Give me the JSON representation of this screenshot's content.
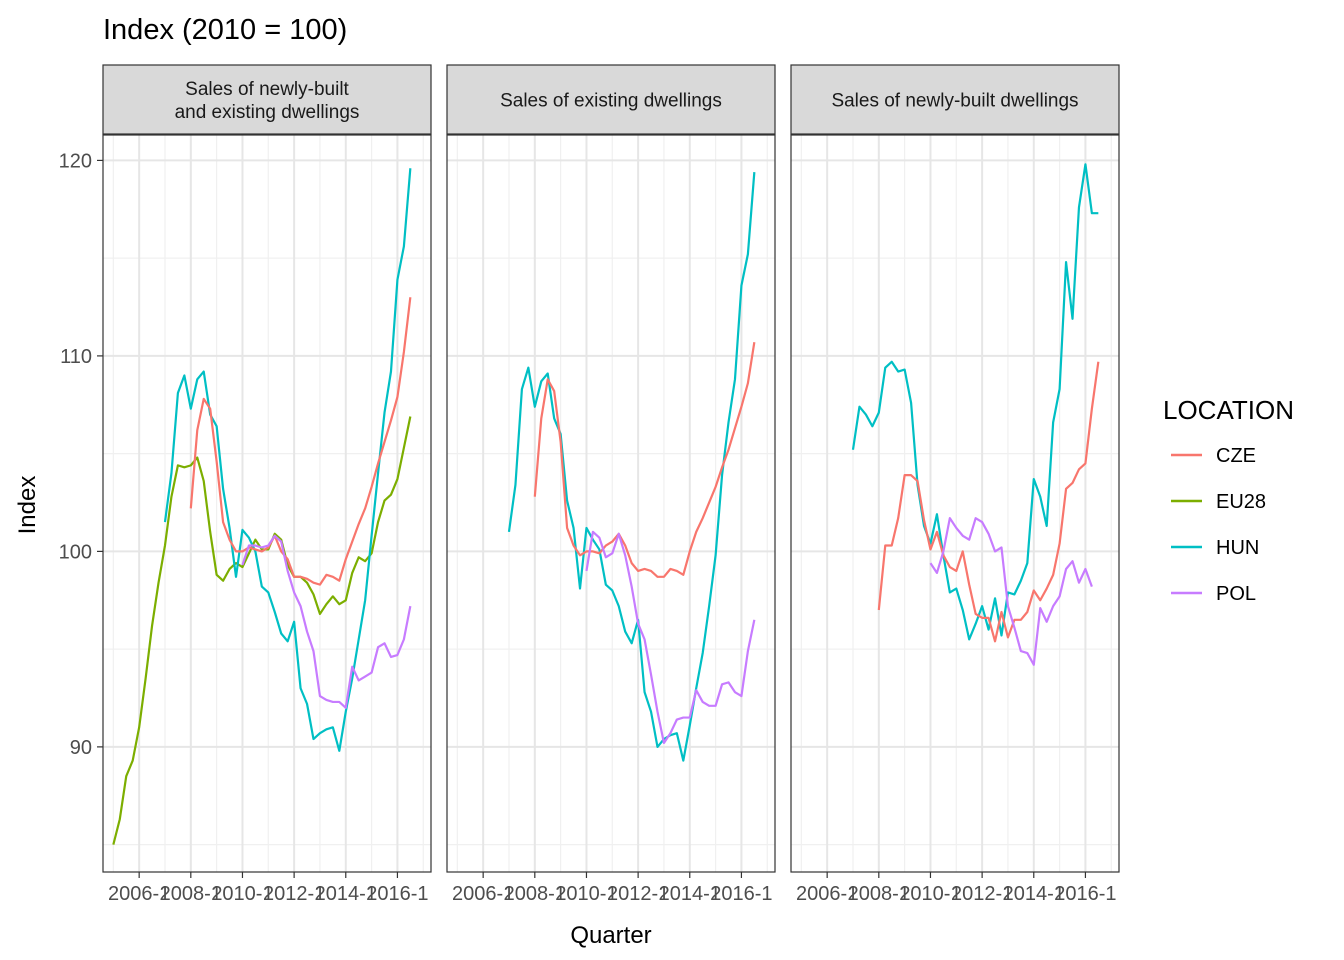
{
  "chart_data": {
    "type": "line",
    "title": "Index (2010 = 100)",
    "xlabel": "Quarter",
    "ylabel": "Index",
    "xlim": [
      2004.6,
      2017.3
    ],
    "ylim": [
      83.6,
      121.3
    ],
    "y_ticks": [
      90,
      100,
      110,
      120
    ],
    "x_ticks": [
      {
        "value": 2006,
        "label": "2006-1"
      },
      {
        "value": 2008,
        "label": "2008-1"
      },
      {
        "value": 2010,
        "label": "2010-1"
      },
      {
        "value": 2012,
        "label": "2012-1"
      },
      {
        "value": 2014,
        "label": "2014-1"
      },
      {
        "value": 2016,
        "label": "2016-1"
      }
    ],
    "grid": true,
    "legend": {
      "title": "LOCATION",
      "position": "right",
      "entries": [
        {
          "name": "CZE",
          "color": "#F8766D"
        },
        {
          "name": "EU28",
          "color": "#7CAE00"
        },
        {
          "name": "HUN",
          "color": "#00BFC4"
        },
        {
          "name": "POL",
          "color": "#C77CFF"
        }
      ]
    },
    "panels": [
      {
        "strip": [
          "Sales of newly-built",
          "and existing dwellings"
        ],
        "series": [
          {
            "name": "EU28",
            "color": "#7CAE00",
            "x": [
              2005.0,
              2005.25,
              2005.5,
              2005.75,
              2006.0,
              2006.25,
              2006.5,
              2006.75,
              2007.0,
              2007.25,
              2007.5,
              2007.75,
              2008.0,
              2008.25,
              2008.5,
              2008.75,
              2009.0,
              2009.25,
              2009.5,
              2009.75,
              2010.0,
              2010.25,
              2010.5,
              2010.75,
              2011.0,
              2011.25,
              2011.5,
              2011.75,
              2012.0,
              2012.25,
              2012.5,
              2012.75,
              2013.0,
              2013.25,
              2013.5,
              2013.75,
              2014.0,
              2014.25,
              2014.5,
              2014.75,
              2015.0,
              2015.25,
              2015.5,
              2015.75,
              2016.0,
              2016.25,
              2016.5
            ],
            "y": [
              85.0,
              86.3,
              88.5,
              89.3,
              91.0,
              93.5,
              96.2,
              98.4,
              100.3,
              102.8,
              104.4,
              104.3,
              104.4,
              104.8,
              103.6,
              101.0,
              98.8,
              98.5,
              99.1,
              99.4,
              99.2,
              99.9,
              100.6,
              100.1,
              100.1,
              100.9,
              100.6,
              99.3,
              98.7,
              98.7,
              98.4,
              97.8,
              96.8,
              97.3,
              97.7,
              97.3,
              97.5,
              98.9,
              99.7,
              99.5,
              99.9,
              101.5,
              102.6,
              102.9,
              103.7,
              105.3,
              106.9
            ]
          },
          {
            "name": "HUN",
            "color": "#00BFC4",
            "x": [
              2007.0,
              2007.25,
              2007.5,
              2007.75,
              2008.0,
              2008.25,
              2008.5,
              2008.75,
              2009.0,
              2009.25,
              2009.5,
              2009.75,
              2010.0,
              2010.25,
              2010.5,
              2010.75,
              2011.0,
              2011.25,
              2011.5,
              2011.75,
              2012.0,
              2012.25,
              2012.5,
              2012.75,
              2013.0,
              2013.25,
              2013.5,
              2013.75,
              2014.0,
              2014.25,
              2014.5,
              2014.75,
              2015.0,
              2015.25,
              2015.5,
              2015.75,
              2016.0,
              2016.25,
              2016.5
            ],
            "y": [
              101.5,
              104.0,
              108.1,
              109.0,
              107.3,
              108.8,
              109.2,
              107.0,
              106.4,
              103.2,
              101.2,
              98.7,
              101.1,
              100.7,
              100.0,
              98.2,
              97.9,
              96.9,
              95.8,
              95.4,
              96.4,
              93.0,
              92.2,
              90.4,
              90.7,
              90.9,
              91.0,
              89.8,
              91.8,
              93.5,
              95.5,
              97.5,
              100.8,
              104.0,
              107.1,
              109.2,
              113.9,
              115.6,
              119.6
            ]
          },
          {
            "name": "CZE",
            "color": "#F8766D",
            "x": [
              2008.0,
              2008.25,
              2008.5,
              2008.75,
              2009.0,
              2009.25,
              2009.5,
              2009.75,
              2010.0,
              2010.25,
              2010.5,
              2010.75,
              2011.0,
              2011.25,
              2011.5,
              2011.75,
              2012.0,
              2012.25,
              2012.5,
              2012.75,
              2013.0,
              2013.25,
              2013.5,
              2013.75,
              2014.0,
              2014.25,
              2014.5,
              2014.75,
              2015.0,
              2015.25,
              2015.5,
              2015.75,
              2016.0,
              2016.25,
              2016.5
            ],
            "y": [
              102.2,
              106.2,
              107.8,
              107.3,
              104.6,
              101.5,
              100.6,
              100.0,
              100.0,
              100.2,
              100.1,
              100.0,
              100.2,
              100.8,
              100.0,
              99.6,
              98.7,
              98.7,
              98.6,
              98.4,
              98.3,
              98.8,
              98.7,
              98.5,
              99.6,
              100.5,
              101.4,
              102.2,
              103.3,
              104.5,
              105.6,
              106.7,
              107.9,
              110.2,
              113.0
            ]
          },
          {
            "name": "POL",
            "color": "#C77CFF",
            "x": [
              2010.0,
              2010.25,
              2010.5,
              2010.75,
              2011.0,
              2011.25,
              2011.5,
              2011.75,
              2012.0,
              2012.25,
              2012.5,
              2012.75,
              2013.0,
              2013.25,
              2013.5,
              2013.75,
              2014.0,
              2014.25,
              2014.5,
              2014.75,
              2015.0,
              2015.25,
              2015.5,
              2015.75,
              2016.0,
              2016.25,
              2016.5
            ],
            "y": [
              99.3,
              100.3,
              100.3,
              100.2,
              100.3,
              100.8,
              100.5,
              99.0,
              97.9,
              97.2,
              95.9,
              94.9,
              92.6,
              92.4,
              92.3,
              92.3,
              92.0,
              94.1,
              93.4,
              93.6,
              93.8,
              95.1,
              95.3,
              94.6,
              94.7,
              95.5,
              97.2
            ]
          }
        ]
      },
      {
        "strip": [
          "Sales of existing dwellings"
        ],
        "series": [
          {
            "name": "HUN",
            "color": "#00BFC4",
            "x": [
              2007.0,
              2007.25,
              2007.5,
              2007.75,
              2008.0,
              2008.25,
              2008.5,
              2008.75,
              2009.0,
              2009.25,
              2009.5,
              2009.75,
              2010.0,
              2010.25,
              2010.5,
              2010.75,
              2011.0,
              2011.25,
              2011.5,
              2011.75,
              2012.0,
              2012.25,
              2012.5,
              2012.75,
              2013.0,
              2013.25,
              2013.5,
              2013.75,
              2014.0,
              2014.25,
              2014.5,
              2014.75,
              2015.0,
              2015.25,
              2015.5,
              2015.75,
              2016.0,
              2016.25,
              2016.5
            ],
            "y": [
              101.0,
              103.4,
              108.3,
              109.4,
              107.4,
              108.7,
              109.1,
              106.8,
              106.0,
              102.6,
              101.2,
              98.1,
              101.2,
              100.6,
              100.1,
              98.3,
              98.0,
              97.2,
              95.9,
              95.3,
              96.5,
              92.8,
              91.8,
              90.0,
              90.4,
              90.6,
              90.7,
              89.3,
              91.1,
              93.0,
              94.8,
              97.2,
              99.8,
              103.9,
              106.6,
              108.8,
              113.6,
              115.2,
              119.4
            ]
          },
          {
            "name": "CZE",
            "color": "#F8766D",
            "x": [
              2008.0,
              2008.25,
              2008.5,
              2008.75,
              2009.0,
              2009.25,
              2009.5,
              2009.75,
              2010.0,
              2010.25,
              2010.5,
              2010.75,
              2011.0,
              2011.25,
              2011.5,
              2011.75,
              2012.0,
              2012.25,
              2012.5,
              2012.75,
              2013.0,
              2013.25,
              2013.5,
              2013.75,
              2014.0,
              2014.25,
              2014.5,
              2014.75,
              2015.0,
              2015.25,
              2015.5,
              2015.75,
              2016.0,
              2016.25,
              2016.5
            ],
            "y": [
              102.8,
              106.8,
              108.8,
              108.2,
              105.6,
              101.2,
              100.3,
              99.8,
              100.0,
              100.0,
              99.9,
              100.3,
              100.5,
              100.9,
              100.3,
              99.4,
              99.0,
              99.1,
              99.0,
              98.7,
              98.7,
              99.1,
              99.0,
              98.8,
              100.0,
              101.0,
              101.7,
              102.5,
              103.3,
              104.3,
              105.2,
              106.3,
              107.4,
              108.6,
              110.7
            ]
          },
          {
            "name": "POL",
            "color": "#C77CFF",
            "x": [
              2010.0,
              2010.25,
              2010.5,
              2010.75,
              2011.0,
              2011.25,
              2011.5,
              2011.75,
              2012.0,
              2012.25,
              2012.5,
              2012.75,
              2013.0,
              2013.25,
              2013.5,
              2013.75,
              2014.0,
              2014.25,
              2014.5,
              2014.75,
              2015.0,
              2015.25,
              2015.5,
              2015.75,
              2016.0,
              2016.25,
              2016.5
            ],
            "y": [
              99.0,
              101.0,
              100.7,
              99.7,
              99.9,
              100.9,
              99.8,
              98.2,
              96.3,
              95.5,
              93.7,
              91.8,
              90.2,
              90.7,
              91.4,
              91.5,
              91.5,
              92.9,
              92.3,
              92.1,
              92.1,
              93.2,
              93.3,
              92.8,
              92.6,
              94.9,
              96.5
            ]
          }
        ]
      },
      {
        "strip": [
          "Sales of newly-built dwellings"
        ],
        "series": [
          {
            "name": "HUN",
            "color": "#00BFC4",
            "x": [
              2007.0,
              2007.25,
              2007.5,
              2007.75,
              2008.0,
              2008.25,
              2008.5,
              2008.75,
              2009.0,
              2009.25,
              2009.5,
              2009.75,
              2010.0,
              2010.25,
              2010.5,
              2010.75,
              2011.0,
              2011.25,
              2011.5,
              2011.75,
              2012.0,
              2012.25,
              2012.5,
              2012.75,
              2013.0,
              2013.25,
              2013.5,
              2013.75,
              2014.0,
              2014.25,
              2014.5,
              2014.75,
              2015.0,
              2015.25,
              2015.5,
              2015.75,
              2016.0,
              2016.25,
              2016.5
            ],
            "y": [
              105.2,
              107.4,
              107.0,
              106.4,
              107.1,
              109.4,
              109.7,
              109.2,
              109.3,
              107.6,
              103.4,
              101.3,
              100.4,
              101.9,
              99.8,
              97.9,
              98.1,
              97.0,
              95.5,
              96.3,
              97.2,
              96.0,
              97.6,
              95.7,
              97.9,
              97.8,
              98.5,
              99.4,
              103.7,
              102.8,
              101.3,
              106.6,
              108.3,
              114.8,
              111.9,
              117.6,
              119.8,
              117.3,
              117.3
            ]
          },
          {
            "name": "CZE",
            "color": "#F8766D",
            "x": [
              2008.0,
              2008.25,
              2008.5,
              2008.75,
              2009.0,
              2009.25,
              2009.5,
              2009.75,
              2010.0,
              2010.25,
              2010.5,
              2010.75,
              2011.0,
              2011.25,
              2011.5,
              2011.75,
              2012.0,
              2012.25,
              2012.5,
              2012.75,
              2013.0,
              2013.25,
              2013.5,
              2013.75,
              2014.0,
              2014.25,
              2014.5,
              2014.75,
              2015.0,
              2015.25,
              2015.5,
              2015.75,
              2016.0,
              2016.25,
              2016.5
            ],
            "y": [
              97.0,
              100.3,
              100.3,
              101.7,
              103.9,
              103.9,
              103.6,
              101.6,
              100.1,
              101.0,
              99.8,
              99.2,
              99.0,
              100.0,
              98.3,
              96.8,
              96.6,
              96.6,
              95.4,
              96.9,
              95.6,
              96.5,
              96.5,
              96.9,
              98.0,
              97.5,
              98.1,
              98.8,
              100.4,
              103.2,
              103.5,
              104.2,
              104.5,
              107.3,
              109.7
            ]
          },
          {
            "name": "POL",
            "color": "#C77CFF",
            "x": [
              2010.0,
              2010.25,
              2010.5,
              2010.75,
              2011.0,
              2011.25,
              2011.5,
              2011.75,
              2012.0,
              2012.25,
              2012.5,
              2012.75,
              2013.0,
              2013.25,
              2013.5,
              2013.75,
              2014.0,
              2014.25,
              2014.5,
              2014.75,
              2015.0,
              2015.25,
              2015.5,
              2015.75,
              2016.0,
              2016.25
            ],
            "y": [
              99.4,
              98.9,
              100.0,
              101.7,
              101.2,
              100.8,
              100.6,
              101.7,
              101.5,
              100.9,
              100.0,
              100.2,
              97.2,
              96.1,
              94.9,
              94.8,
              94.2,
              97.1,
              96.4,
              97.2,
              97.7,
              99.1,
              99.5,
              98.4,
              99.1,
              98.2
            ]
          }
        ]
      }
    ]
  }
}
